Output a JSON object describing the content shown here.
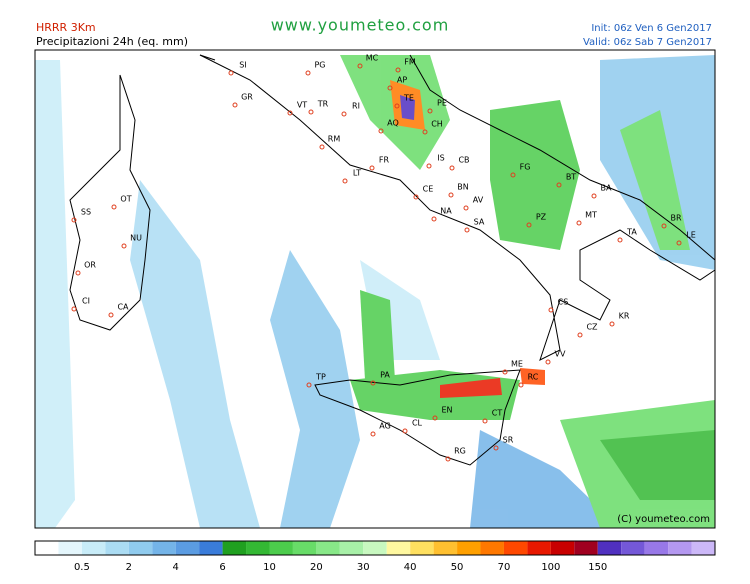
{
  "header": {
    "model": "HRRR 3Km",
    "product": "Precipitazioni 24h (eq. mm)",
    "site": "www.youmeteo.com",
    "init": "Init: 06z Ven  6  Gen2017",
    "valid": "Valid: 06z Sab  7  Gen2017"
  },
  "copyright": "(C) youmeteo.com",
  "cities": [
    "SI",
    "PG",
    "MC",
    "FM",
    "AP",
    "GR",
    "VT",
    "TR",
    "RI",
    "TE",
    "PE",
    "AQ",
    "CH",
    "RM",
    "FR",
    "IS",
    "CB",
    "FG",
    "BT",
    "BA",
    "LT",
    "CE",
    "BN",
    "AV",
    "NA",
    "SA",
    "PZ",
    "MT",
    "TA",
    "BR",
    "LE",
    "OT",
    "SS",
    "NU",
    "OR",
    "CI",
    "CA",
    "CS",
    "KR",
    "CZ",
    "VV",
    "ME",
    "RC",
    "TP",
    "PA",
    "AG",
    "CL",
    "EN",
    "CT",
    "SR",
    "RG"
  ],
  "legend": {
    "colors": [
      "#ffffff",
      "#e4f6fc",
      "#c8ecf8",
      "#abdcf3",
      "#90cbee",
      "#74b4e8",
      "#5b9ce2",
      "#3a7cda",
      "#20a020",
      "#34b834",
      "#4ccc4c",
      "#68dc68",
      "#88e888",
      "#a8f0a8",
      "#c8f8c0",
      "#fff8a0",
      "#ffe060",
      "#ffc030",
      "#ffa000",
      "#ff7800",
      "#ff4800",
      "#e81800",
      "#c80000",
      "#a00020",
      "#5030c0",
      "#7458d8",
      "#9878e8",
      "#b498f0",
      "#ccb8f8"
    ],
    "labels": [
      0.5,
      2,
      4,
      6,
      10,
      20,
      30,
      40,
      50,
      70,
      100,
      150
    ]
  }
}
